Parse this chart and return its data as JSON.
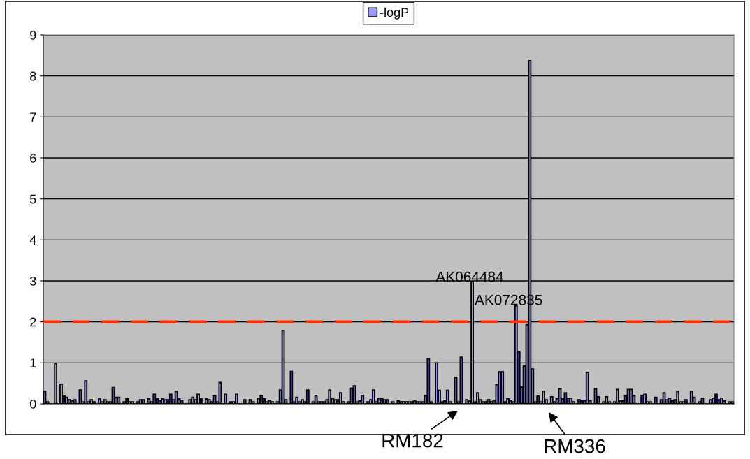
{
  "chart_data": {
    "type": "bar",
    "categories": [
      null,
      null,
      null,
      null,
      null,
      null,
      null,
      null,
      null,
      null,
      null,
      null,
      null,
      null,
      null,
      null,
      null,
      null,
      null,
      null,
      null,
      null,
      null,
      null,
      null,
      null,
      null,
      null,
      null,
      null,
      null,
      null,
      null,
      null,
      null,
      null,
      null,
      null,
      null,
      null,
      null,
      null,
      null,
      null,
      null,
      null,
      null,
      null,
      null,
      null,
      null,
      null,
      null,
      null,
      null,
      null,
      null,
      null,
      null,
      null,
      null,
      null,
      null,
      null,
      null,
      null,
      null,
      null,
      null,
      null,
      null,
      null,
      null,
      null,
      null,
      null,
      null,
      null,
      null,
      null,
      null,
      null,
      null,
      null,
      null,
      null,
      null,
      null,
      null,
      null,
      null,
      null,
      null,
      null,
      null,
      null,
      null,
      null,
      null,
      null,
      null,
      null,
      null,
      null,
      null,
      null,
      null,
      null,
      null,
      null,
      null,
      null,
      null,
      null,
      null,
      null,
      null,
      null,
      null,
      null,
      null,
      null,
      null,
      null,
      null,
      null,
      null,
      null,
      null,
      null,
      null,
      null,
      null,
      null,
      null,
      null,
      null,
      null,
      null,
      null,
      null,
      null,
      null,
      null,
      null,
      null,
      null,
      null,
      null,
      null,
      null,
      null,
      null,
      null,
      null,
      null,
      null,
      null,
      null,
      null,
      null,
      null,
      null,
      null,
      null,
      null,
      null,
      null,
      null,
      null,
      null,
      null,
      null,
      null,
      null,
      null,
      null,
      null,
      null,
      null,
      null,
      null,
      null,
      null,
      null,
      null,
      null,
      null,
      null,
      null,
      null,
      null,
      null,
      null,
      null,
      null,
      null,
      null,
      null,
      null,
      null,
      null,
      null,
      null,
      null,
      null,
      null,
      null,
      null,
      null,
      null,
      null,
      null,
      null,
      null,
      null,
      null,
      null,
      null,
      null,
      null,
      null,
      null,
      null,
      null,
      null,
      null,
      null,
      null,
      null,
      null,
      null,
      null,
      null,
      null,
      null,
      null,
      null,
      null,
      null,
      null,
      null,
      null,
      null,
      null,
      null,
      null,
      null,
      null,
      null,
      null,
      null
    ],
    "series": [
      {
        "name": "-logP",
        "color": "#9999ff",
        "values": [
          0.3,
          0.05,
          null,
          null,
          0.98,
          null,
          0.48,
          0.19,
          0.16,
          0.1,
          0.07,
          0.1,
          null,
          0.34,
          0.05,
          0.56,
          0.05,
          0.1,
          0.05,
          null,
          0.12,
          0.05,
          0.1,
          0.05,
          0.05,
          0.4,
          0.16,
          0.16,
          null,
          0.05,
          0.12,
          0.05,
          0.05,
          null,
          0.05,
          0.1,
          0.1,
          null,
          0.12,
          0.05,
          0.23,
          0.12,
          0.07,
          0.12,
          0.1,
          0.1,
          0.23,
          0.1,
          0.3,
          0.12,
          0.07,
          null,
          null,
          0.1,
          0.16,
          0.1,
          0.23,
          0.12,
          null,
          0.12,
          0.1,
          0.05,
          0.2,
          0.05,
          0.52,
          null,
          0.23,
          null,
          0.05,
          0.05,
          0.23,
          null,
          null,
          0.1,
          null,
          0.1,
          0.05,
          null,
          0.13,
          0.2,
          0.13,
          0.05,
          0.07,
          0.05,
          null,
          0.05,
          0.34,
          1.79,
          0.1,
          null,
          0.79,
          0.05,
          0.16,
          0.05,
          0.1,
          0.05,
          0.34,
          null,
          0.05,
          0.2,
          0.05,
          0.05,
          0.05,
          0.1,
          0.34,
          0.13,
          0.1,
          0.1,
          0.27,
          0.05,
          null,
          0.05,
          0.38,
          0.44,
          0.05,
          0.07,
          0.2,
          null,
          0.05,
          0.1,
          0.34,
          0.05,
          0.13,
          0.13,
          0.1,
          0.1,
          null,
          0.05,
          null,
          0.07,
          0.05,
          0.05,
          0.05,
          0.05,
          0.05,
          0.07,
          0.05,
          0.05,
          0.05,
          0.2,
          1.1,
          0.05,
          null,
          1.0,
          0.33,
          0.05,
          0.07,
          0.33,
          0.05,
          null,
          0.65,
          0.05,
          1.14,
          null,
          0.1,
          0.07,
          2.98,
          0.05,
          0.27,
          0.1,
          0.05,
          0.05,
          0.1,
          0.05,
          0.08,
          0.47,
          0.78,
          0.78,
          0.05,
          0.12,
          0.07,
          0.05,
          2.39,
          1.27,
          0.41,
          0.92,
          1.93,
          8.37,
          0.85,
          0.05,
          0.19,
          0.05,
          0.3,
          0.1,
          null,
          0.17,
          0.05,
          0.12,
          0.37,
          0.12,
          0.27,
          0.14,
          0.14,
          0.05,
          null,
          0.1,
          0.07,
          0.07,
          0.77,
          0.07,
          null,
          0.37,
          0.17,
          null,
          0.05,
          0.17,
          0.05,
          null,
          0.05,
          0.35,
          0.07,
          0.07,
          0.2,
          0.35,
          0.35,
          0.2,
          null,
          null,
          0.2,
          0.23,
          0.05,
          0.05,
          null,
          0.16,
          null,
          0.1,
          0.27,
          0.1,
          0.14,
          0.07,
          0.1,
          0.3,
          0.05,
          0.05,
          0.1,
          null,
          0.3,
          0.16,
          null,
          0.05,
          0.14,
          null,
          null,
          0.1,
          0.14,
          0.23,
          0.1,
          0.14,
          0.07,
          null,
          0.05,
          0.05
        ]
      }
    ],
    "ylim": [
      0,
      9
    ],
    "yticks": [
      0,
      1,
      2,
      3,
      4,
      5,
      6,
      7,
      8,
      9
    ],
    "grid": "y",
    "legend": "top",
    "tick_labels": "y",
    "ref_lines": [
      {
        "axis": "y",
        "value": 2,
        "color": "#ff3300",
        "line_style": "dashed"
      }
    ],
    "annotations": [
      "AK064484",
      "AK072835",
      "RM182",
      "RM336"
    ]
  }
}
